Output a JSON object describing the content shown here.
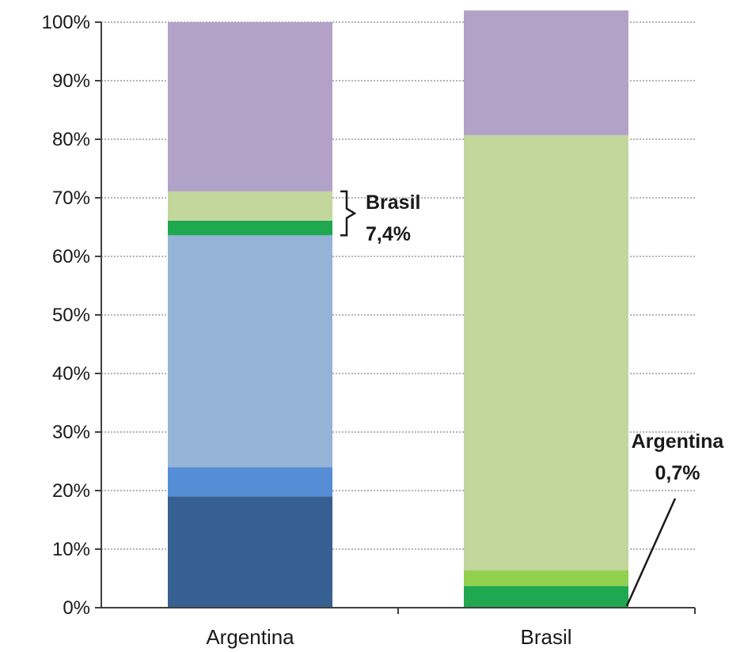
{
  "chart_data": {
    "type": "bar",
    "stacked": true,
    "normalized": true,
    "categories": [
      "Argentina",
      "Brasil"
    ],
    "ylim": [
      0,
      100
    ],
    "yticks": [
      "0%",
      "10%",
      "20%",
      "30%",
      "40%",
      "50%",
      "60%",
      "70%",
      "80%",
      "90%",
      "100%"
    ],
    "grid": true,
    "series": [
      {
        "color": "#376092",
        "values": [
          19.0,
          0.0
        ]
      },
      {
        "color": "#558ED5",
        "values": [
          5.0,
          0.0
        ]
      },
      {
        "color": "#95B3D7",
        "values": [
          39.6,
          0.0
        ]
      },
      {
        "color": "#1FA84F",
        "values": [
          2.5,
          3.7
        ]
      },
      {
        "color": "#C3D69B",
        "values": [
          5.0,
          74.3
        ]
      },
      {
        "color": "#B3A2C7",
        "values": [
          28.9,
          21.3
        ]
      },
      {
        "color": "#92D050",
        "values": [
          0.0,
          2.7
        ]
      }
    ],
    "series_order_brasil": [
      3,
      6,
      4,
      5
    ],
    "annotations": [
      {
        "line1": "Brasil",
        "line2": "7,4%",
        "target": "Argentina",
        "range": [
          63.6,
          71.1
        ]
      },
      {
        "line1": "Argentina",
        "line2": "0,7%",
        "target": "Brasil",
        "at": 0.3
      }
    ]
  }
}
